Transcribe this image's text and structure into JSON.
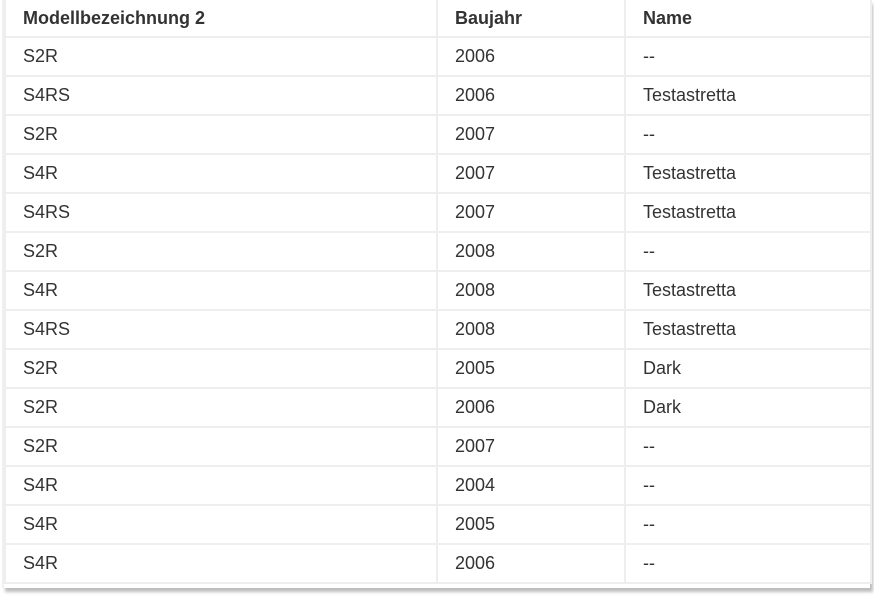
{
  "table": {
    "headers": [
      "Modellbezeichnung 2",
      "Baujahr",
      "Name"
    ],
    "rows": [
      [
        "S2R",
        "2006",
        "--"
      ],
      [
        "S4RS",
        "2006",
        "Testastretta"
      ],
      [
        "S2R",
        "2007",
        "--"
      ],
      [
        "S4R",
        "2007",
        "Testastretta"
      ],
      [
        "S4RS",
        "2007",
        "Testastretta"
      ],
      [
        "S2R",
        "2008",
        "--"
      ],
      [
        "S4R",
        "2008",
        "Testastretta"
      ],
      [
        "S4RS",
        "2008",
        "Testastretta"
      ],
      [
        "S2R",
        "2005",
        "Dark"
      ],
      [
        "S2R",
        "2006",
        "Dark"
      ],
      [
        "S2R",
        "2007",
        "--"
      ],
      [
        "S4R",
        "2004",
        "--"
      ],
      [
        "S4R",
        "2005",
        "--"
      ],
      [
        "S4R",
        "2006",
        "--"
      ]
    ]
  }
}
